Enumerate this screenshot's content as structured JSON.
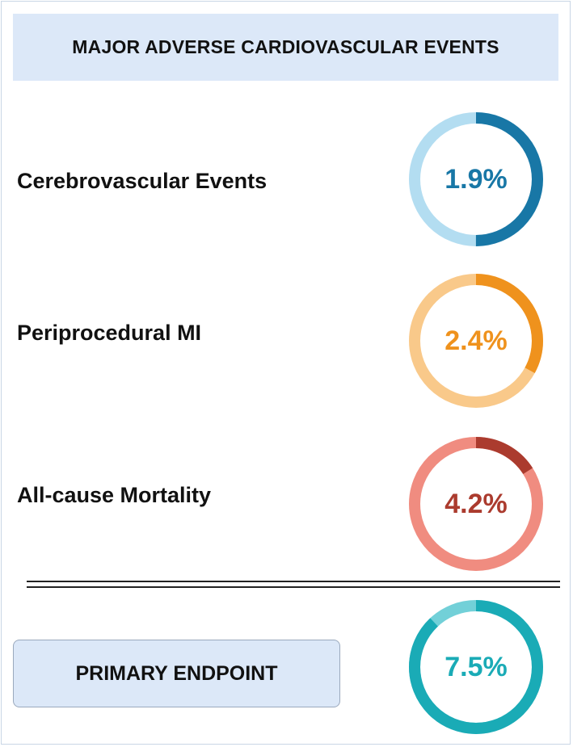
{
  "header": {
    "title": "MAJOR ADVERSE CARDIOVASCULAR EVENTS"
  },
  "events": [
    {
      "label": "Cerebrovascular Events",
      "value_text": "1.9%",
      "fill_fraction": 0.5,
      "color_light": "#b3ddf1",
      "color_dark": "#1877a6",
      "text_color": "#1877a6"
    },
    {
      "label": "Periprocedural MI",
      "value_text": "2.4%",
      "fill_fraction": 0.33,
      "color_light": "#f9c98a",
      "color_dark": "#ef921d",
      "text_color": "#ef921d"
    },
    {
      "label": "All-cause Mortality",
      "value_text": "4.2%",
      "fill_fraction": 0.16,
      "color_light": "#f08c80",
      "color_dark": "#ab3b2e",
      "text_color": "#ab3b2e"
    }
  ],
  "primary": {
    "label": "PRIMARY ENDPOINT",
    "value_text": "7.5%",
    "fill_fraction": 0.88,
    "color_light": "#72d0d8",
    "color_dark": "#1aabb6",
    "text_color": "#1aabb6"
  }
}
